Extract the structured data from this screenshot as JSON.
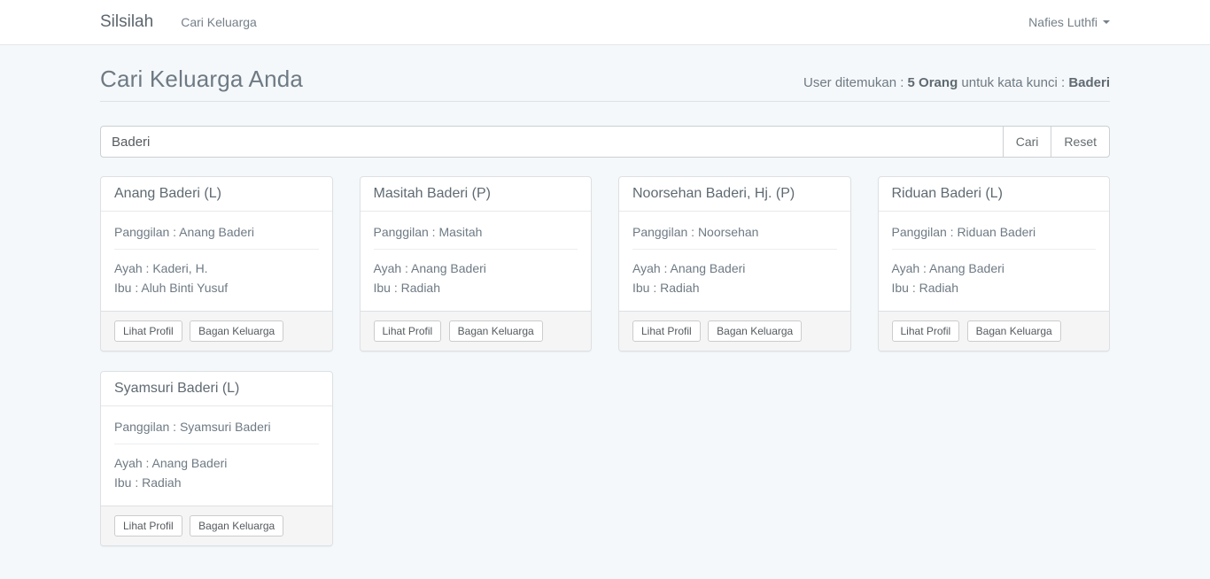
{
  "navbar": {
    "brand": "Silsilah",
    "nav_item": "Cari Keluarga",
    "user": "Nafies Luthfi"
  },
  "page": {
    "title": "Cari Keluarga Anda",
    "results": {
      "prefix": "User ditemukan : ",
      "count": "5 Orang",
      "middle": " untuk kata kunci : ",
      "keyword": "Baderi"
    }
  },
  "search": {
    "value": "Baderi",
    "cari_label": "Cari",
    "reset_label": "Reset"
  },
  "actions": {
    "lihat_profil": "Lihat Profil",
    "bagan_keluarga": "Bagan Keluarga"
  },
  "cards": [
    {
      "name": "Anang Baderi (L)",
      "panggilan": "Panggilan : Anang Baderi",
      "ayah": "Ayah : Kaderi, H.",
      "ibu": "Ibu : Aluh Binti Yusuf"
    },
    {
      "name": "Masitah Baderi (P)",
      "panggilan": "Panggilan : Masitah",
      "ayah": "Ayah : Anang Baderi",
      "ibu": "Ibu : Radiah"
    },
    {
      "name": "Noorsehan Baderi, Hj. (P)",
      "panggilan": "Panggilan : Noorsehan",
      "ayah": "Ayah : Anang Baderi",
      "ibu": "Ibu : Radiah"
    },
    {
      "name": "Riduan Baderi (L)",
      "panggilan": "Panggilan : Riduan Baderi",
      "ayah": "Ayah : Anang Baderi",
      "ibu": "Ibu : Radiah"
    },
    {
      "name": "Syamsuri Baderi (L)",
      "panggilan": "Panggilan : Syamsuri Baderi",
      "ayah": "Ayah : Anang Baderi",
      "ibu": "Ibu : Radiah"
    }
  ],
  "colors": {
    "body_bg": "#f5f8fa",
    "navbar_bg": "#ffffff",
    "text": "#636b6f",
    "card_footer_bg": "#f5f5f5",
    "border": "#dde1e4"
  }
}
